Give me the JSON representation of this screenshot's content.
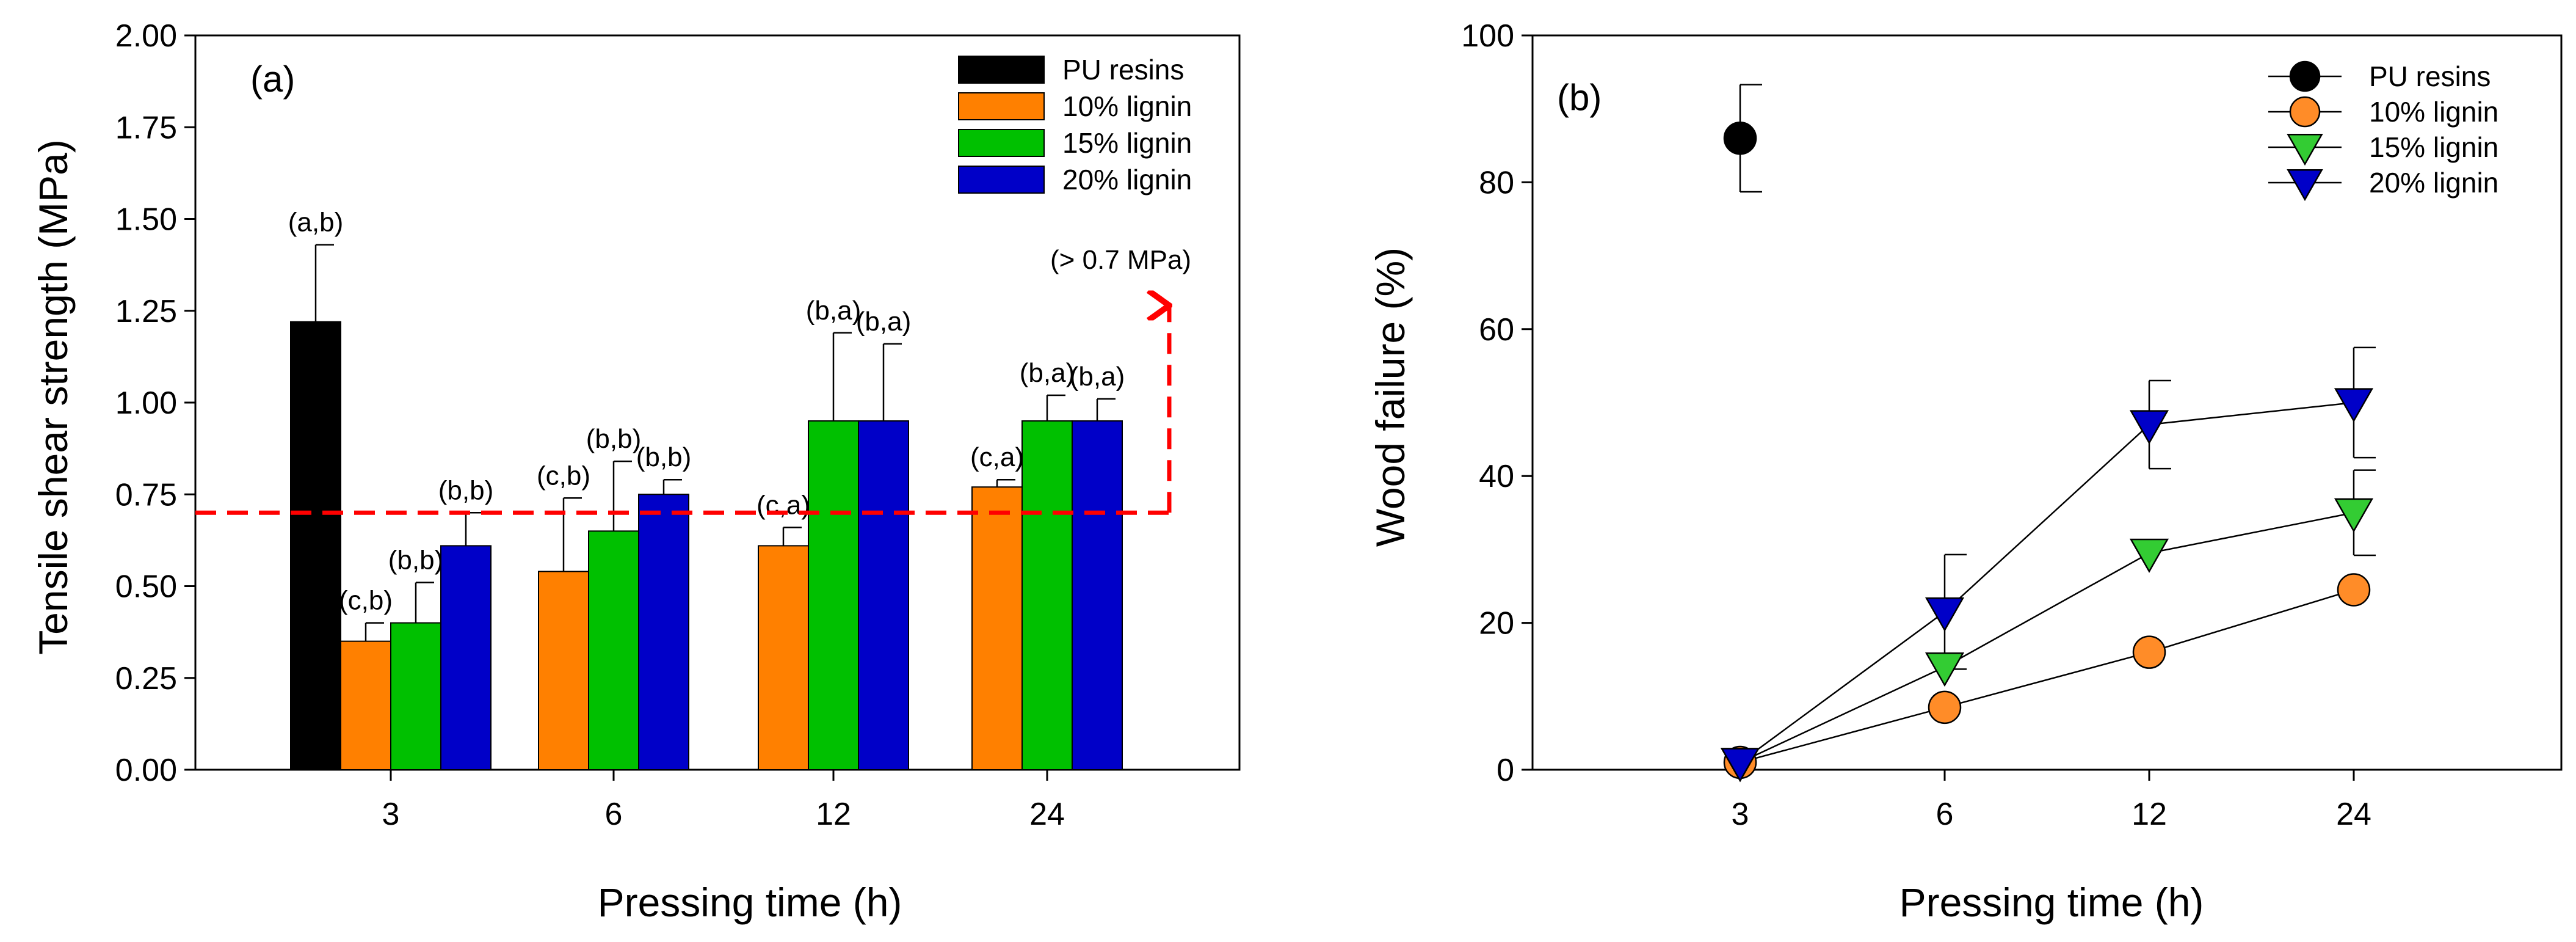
{
  "chart_data": [
    {
      "panel": "(a)",
      "type": "bar",
      "xlabel": "Pressing time (h)",
      "ylabel": "Tensile shear strength (MPa)",
      "ylim": [
        0,
        2.0
      ],
      "yticks": [
        "0.00",
        "0.25",
        "0.50",
        "0.75",
        "1.00",
        "1.25",
        "1.50",
        "1.75",
        "2.00"
      ],
      "categories": [
        "3",
        "6",
        "12",
        "24"
      ],
      "series": [
        {
          "name": "PU resins",
          "color": "#000000",
          "values": [
            1.22,
            null,
            null,
            null
          ],
          "errors": [
            0.21,
            null,
            null,
            null
          ],
          "labels": [
            "(a,b)",
            "",
            "",
            ""
          ]
        },
        {
          "name": "10% lignin",
          "color": "#ff8000",
          "values": [
            0.35,
            0.54,
            0.61,
            0.77
          ],
          "errors": [
            0.05,
            0.2,
            0.05,
            0.02
          ],
          "labels": [
            "(c,b)",
            "(c,b)",
            "(c,a)",
            "(c,a)"
          ]
        },
        {
          "name": "15% lignin",
          "color": "#00c000",
          "values": [
            0.4,
            0.65,
            0.95,
            0.95
          ],
          "errors": [
            0.11,
            0.19,
            0.24,
            0.07
          ],
          "labels": [
            "(b,b)",
            "(b,b)",
            "(b,a)",
            "(b,a)"
          ]
        },
        {
          "name": "20% lignin",
          "color": "#0000c8",
          "values": [
            0.61,
            0.75,
            0.95,
            0.95
          ],
          "errors": [
            0.09,
            0.04,
            0.21,
            0.06
          ],
          "labels": [
            "(b,b)",
            "(b,b)",
            "(b,a)",
            "(b,a)"
          ]
        }
      ],
      "threshold": {
        "value": 0.7,
        "label": "(> 0.7 MPa)",
        "color": "#ff0000"
      },
      "legend_position": "top-right"
    },
    {
      "panel": "(b)",
      "type": "scatter",
      "xlabel": "Pressing time (h)",
      "ylabel": "Wood failure (%)",
      "ylim": [
        0,
        100
      ],
      "yticks": [
        "0",
        "20",
        "40",
        "60",
        "80",
        "100"
      ],
      "categories": [
        "3",
        "6",
        "12",
        "24"
      ],
      "series": [
        {
          "name": "PU resins",
          "marker": "circle",
          "color": "#000000",
          "values": [
            86,
            null,
            null,
            null
          ],
          "errors": [
            7.3,
            null,
            null,
            null
          ]
        },
        {
          "name": "10% lignin",
          "marker": "circle",
          "color": "#ff8c28",
          "values": [
            1,
            8.5,
            16,
            24.5
          ],
          "errors": [
            0,
            0,
            0,
            0
          ]
        },
        {
          "name": "15% lignin",
          "marker": "triangle-down",
          "color": "#33cc33",
          "values": [
            1,
            14,
            29.5,
            35
          ],
          "errors": [
            0,
            0,
            0,
            5.8
          ]
        },
        {
          "name": "20% lignin",
          "marker": "triangle-down",
          "color": "#0000c8",
          "values": [
            1,
            21.5,
            47,
            50
          ],
          "errors": [
            0,
            7.8,
            6,
            7.5
          ]
        }
      ],
      "legend_position": "top-right"
    }
  ]
}
